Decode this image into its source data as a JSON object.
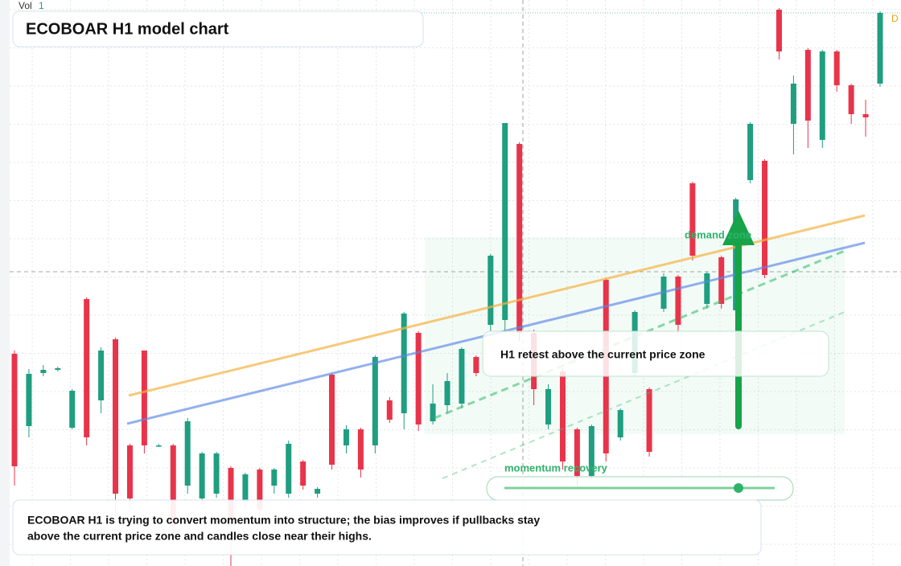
{
  "chart_data": {
    "type": "candlestick",
    "title": "ECOBOAR H1 model chart",
    "volume_label": "Vol",
    "volume_value": "1",
    "corner_badge": "D",
    "zone_label": "demand zone",
    "retest_label": "H1 retest above the current price zone",
    "momentum_label": "momentum recovery",
    "summary_lines": [
      "ECOBOAR H1 is trying to convert momentum into structure; the bias improves if pullbacks stay",
      "above the current price zone and candles close near their highs."
    ],
    "ylim": [
      0,
      704
    ],
    "grid": true,
    "up_color": "#1f9e80",
    "down_color": "#e8344b",
    "open": [
      264,
      174,
      240,
      244,
      172,
      332,
      206,
      282,
      150,
      268,
      150,
      150,
      100,
      84,
      90,
      122,
      80,
      120,
      100,
      90,
      130,
      90,
      238,
      150,
      170,
      150,
      206,
      190,
      290,
      180,
      200,
      202,
      260,
      300,
      306,
      525,
      290,
      176,
      242,
      170,
      112,
      356,
      160,
      240,
      220,
      320,
      360,
      476,
      326,
      384,
      318,
      480,
      504,
      692,
      550,
      642,
      530,
      640,
      598,
      562,
      600
    ],
    "high": [
      268,
      245,
      250,
      248,
      220,
      334,
      272,
      284,
      152,
      268,
      152,
      152,
      184,
      142,
      142,
      124,
      116,
      122,
      122,
      156,
      132,
      98,
      240,
      175,
      172,
      262,
      210,
      316,
      292,
      226,
      240,
      272,
      262,
      388,
      551,
      527,
      294,
      226,
      246,
      172,
      176,
      358,
      196,
      318,
      222,
      364,
      362,
      478,
      366,
      386,
      458,
      552,
      506,
      694,
      610,
      644,
      642,
      642,
      600,
      580,
      690
    ],
    "low": [
      100,
      160,
      236,
      242,
      170,
      150,
      190,
      60,
      70,
      140,
      148,
      40,
      90,
      80,
      85,
      0,
      70,
      60,
      90,
      85,
      95,
      85,
      120,
      140,
      110,
      140,
      178,
      170,
      168,
      176,
      190,
      196,
      236,
      292,
      290,
      280,
      200,
      170,
      120,
      100,
      108,
      130,
      156,
      236,
      136,
      316,
      290,
      380,
      320,
      320,
      314,
      476,
      358,
      630,
      512,
      520,
      520,
      590,
      550,
      534,
      596
    ],
    "close": [
      124,
      239,
      244,
      246,
      218,
      160,
      268,
      90,
      84,
      150,
      150,
      50,
      180,
      140,
      140,
      60,
      114,
      70,
      120,
      152,
      100,
      96,
      126,
      170,
      120,
      260,
      182,
      314,
      176,
      202,
      230,
      270,
      240,
      386,
      551,
      290,
      220,
      220,
      130,
      112,
      174,
      140,
      194,
      316,
      142,
      360,
      300,
      386,
      364,
      326,
      456,
      550,
      362,
      640,
      600,
      554,
      640,
      598,
      562,
      558,
      688
    ]
  }
}
